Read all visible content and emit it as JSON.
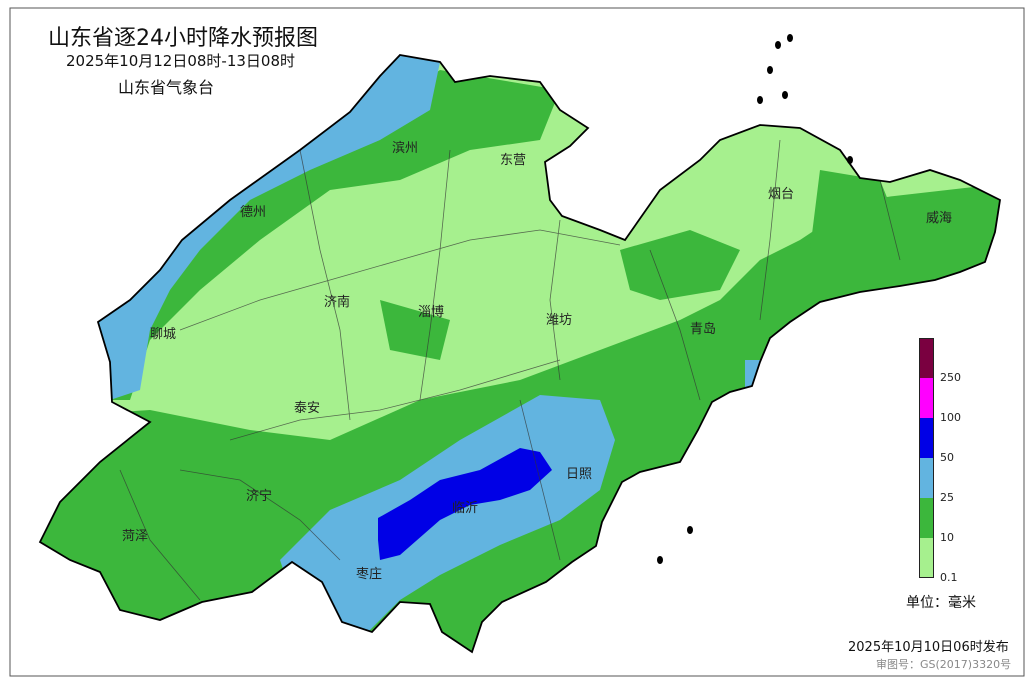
{
  "header": {
    "title": "山东省逐24小时降水预报图",
    "period": "2025年10月12日08时-13日08时",
    "agency": "山东省气象台"
  },
  "cities": [
    {
      "name": "滨州"
    },
    {
      "name": "东营"
    },
    {
      "name": "德州"
    },
    {
      "name": "烟台"
    },
    {
      "name": "威海"
    },
    {
      "name": "聊城"
    },
    {
      "name": "济南"
    },
    {
      "name": "淄博"
    },
    {
      "name": "潍坊"
    },
    {
      "name": "青岛"
    },
    {
      "name": "泰安"
    },
    {
      "name": "日照"
    },
    {
      "name": "济宁"
    },
    {
      "name": "临沂"
    },
    {
      "name": "菏泽"
    },
    {
      "name": "枣庄"
    }
  ],
  "legend": {
    "bins": [
      {
        "color": "#a6f08e"
      },
      {
        "color": "#3cb73c"
      },
      {
        "color": "#62b4e0"
      },
      {
        "color": "#0000e6"
      },
      {
        "color": "#ff00ff"
      },
      {
        "color": "#7a0040"
      }
    ],
    "thresholds": [
      "0.1",
      "10",
      "25",
      "50",
      "100",
      "250"
    ],
    "unit": "单位：毫米"
  },
  "footer": {
    "issued": "2025年10月10日06时发布",
    "approval": "审图号：GS(2017)3320号"
  }
}
